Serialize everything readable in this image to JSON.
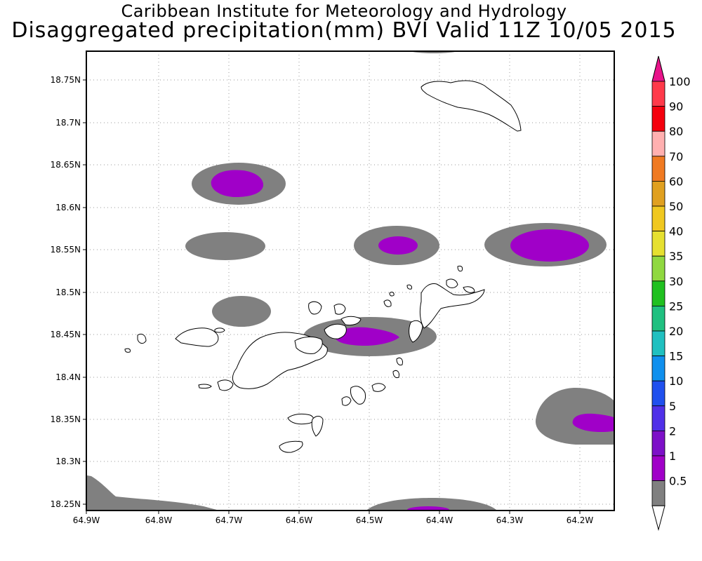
{
  "header": {
    "title": "Caribbean Institute for Meteorology and Hydrology",
    "subtitle": "Disaggregated precipitation(mm) BVI Valid 11Z 10/05 2015"
  },
  "axes": {
    "x_ticks": [
      "64.9W",
      "64.8W",
      "64.7W",
      "64.6W",
      "64.5W",
      "64.4W",
      "64.3W",
      "64.2W"
    ],
    "y_ticks": [
      "18.75N",
      "18.7N",
      "18.65N",
      "18.6N",
      "18.55N",
      "18.5N",
      "18.45N",
      "18.4N",
      "18.35N",
      "18.3N",
      "18.25N"
    ]
  },
  "colorbar": {
    "labels": [
      "100",
      "90",
      "80",
      "70",
      "60",
      "50",
      "40",
      "35",
      "30",
      "25",
      "20",
      "15",
      "10",
      "5",
      "2",
      "1",
      "0.5"
    ],
    "colors": [
      "#ff3a4a",
      "#f4000d",
      "#ffb0b0",
      "#f07a22",
      "#e0a020",
      "#f0c820",
      "#e6e030",
      "#90d840",
      "#20c020",
      "#20c080",
      "#20c0c0",
      "#1090ee",
      "#2050ee",
      "#5030e8",
      "#7d10c8",
      "#a000c8",
      "#808080"
    ],
    "top_arrow_color": "#e8148a"
  },
  "legend_colors": {
    "grey": "#808080",
    "purple": "#a000c8"
  }
}
